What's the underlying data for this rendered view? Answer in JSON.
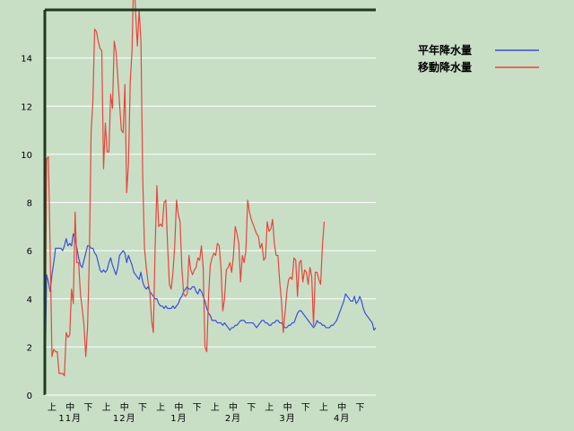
{
  "chart_data": {
    "type": "line",
    "title": "",
    "xlabel": "",
    "ylabel": "",
    "ylim": [
      0,
      16
    ],
    "y_ticks": [
      0,
      2,
      4,
      6,
      8,
      10,
      12,
      14
    ],
    "grid": true,
    "legend_position": "top-right",
    "x_ticks": [
      "上",
      "中",
      "下",
      "上",
      "中",
      "下",
      "上",
      "中",
      "下",
      "上",
      "中",
      "下",
      "上",
      "中",
      "下",
      "上",
      "中",
      "下"
    ],
    "months": [
      "11月",
      "12月",
      "1月",
      "2月",
      "3月",
      "4月"
    ],
    "colors": {
      "background": "#c8dfc6",
      "grid": "#ffffff",
      "axis": "#1f3a1f"
    },
    "series": [
      {
        "name": "平年降水量",
        "color": "#3b4fd8",
        "values": [
          0,
          5,
          4.7,
          4.3,
          5,
          5.5,
          6.1,
          6.1,
          6.1,
          6.1,
          6,
          6.2,
          6.5,
          6.2,
          6.3,
          6.2,
          6.7,
          6.5,
          6.1,
          5.7,
          5.4,
          5.3,
          5.6,
          5.9,
          6.2,
          6.2,
          6.1,
          6.1,
          5.9,
          5.8,
          5.5,
          5.2,
          5.1,
          5.2,
          5.1,
          5.2,
          5.5,
          5.7,
          5.4,
          5.2,
          5,
          5.3,
          5.8,
          5.9,
          6,
          5.9,
          5.5,
          5.8,
          5.6,
          5.4,
          5.1,
          5,
          4.9,
          4.8,
          5.1,
          4.7,
          4.5,
          4.4,
          4.5,
          4.3,
          4.2,
          4.1,
          4,
          4,
          3.8,
          3.7,
          3.7,
          3.6,
          3.7,
          3.6,
          3.6,
          3.6,
          3.7,
          3.6,
          3.7,
          3.8,
          4,
          4.1,
          4.3,
          4.4,
          4.5,
          4.4,
          4.4,
          4.5,
          4.5,
          4.3,
          4.2,
          4.4,
          4.3,
          4.1,
          3.9,
          3.6,
          3.4,
          3.3,
          3.1,
          3.1,
          3.1,
          3,
          3,
          3,
          2.9,
          3,
          2.9,
          2.8,
          2.7,
          2.8,
          2.8,
          2.9,
          2.9,
          3,
          3.1,
          3.1,
          3.1,
          3,
          3,
          3,
          3,
          3,
          2.9,
          2.8,
          2.9,
          3,
          3.1,
          3.1,
          3,
          3,
          2.9,
          2.9,
          3,
          3,
          3.1,
          3.1,
          3,
          3,
          2.9,
          2.8,
          2.8,
          2.9,
          2.9,
          3,
          3,
          3.2,
          3.4,
          3.5,
          3.5,
          3.4,
          3.3,
          3.2,
          3.1,
          3,
          2.9,
          2.8,
          2.9,
          3.1,
          3,
          3,
          2.9,
          2.9,
          2.8,
          2.8,
          2.8,
          2.9,
          2.9,
          3,
          3.1,
          3.3,
          3.5,
          3.7,
          3.9,
          4.2,
          4.1,
          4,
          3.9,
          3.9,
          4.1,
          3.8,
          3.9,
          4.1,
          3.9,
          3.6,
          3.4,
          3.3,
          3.2,
          3.1,
          3,
          2.7,
          2.8
        ]
      },
      {
        "name": "移動降水量",
        "color": "#e8453c",
        "values": [
          0,
          9.8,
          9.9,
          6,
          1.6,
          1.9,
          1.8,
          1.8,
          0.9,
          0.9,
          0.9,
          0.8,
          2.6,
          2.4,
          2.5,
          4.4,
          3.8,
          7.6,
          5.5,
          5.5,
          4.2,
          3.6,
          2.9,
          1.6,
          2.8,
          5.7,
          10.9,
          12.2,
          15.2,
          15.1,
          14.7,
          14.4,
          14.3,
          9.4,
          11.3,
          10.1,
          10.1,
          12.5,
          11.9,
          14.7,
          14.3,
          13.2,
          12.1,
          11,
          10.9,
          12.9,
          8.4,
          9.6,
          13,
          14.3,
          17.7,
          15.9,
          14.5,
          16,
          14.7,
          9.1,
          6.1,
          5.3,
          4.7,
          4.3,
          3.1,
          2.6,
          6.2,
          8.7,
          7,
          7.1,
          7,
          8,
          8.1,
          6.2,
          4.6,
          4.4,
          5.1,
          6.2,
          8.1,
          7.5,
          7.2,
          5.3,
          4.2,
          4.1,
          4.2,
          5.8,
          5.2,
          5,
          5.2,
          5.3,
          5.7,
          5.6,
          6.2,
          5.3,
          2,
          1.8,
          4.1,
          5.4,
          5.7,
          5.9,
          5.8,
          6.3,
          6.2,
          5.3,
          3.5,
          4,
          5.2,
          5.3,
          5.5,
          5.1,
          5.8,
          7,
          6.7,
          6.3,
          4.7,
          5.8,
          5.5,
          6,
          8.1,
          7.6,
          7.3,
          7.1,
          6.9,
          6.7,
          6.6,
          6.1,
          6.3,
          5.6,
          5.7,
          7.2,
          6.8,
          6.9,
          7.3,
          6.3,
          5.8,
          5.8,
          4.7,
          3.9,
          2.6,
          3.4,
          4.3,
          4.8,
          4.9,
          4.8,
          5.7,
          5.6,
          4.1,
          5.5,
          5.6,
          4.7,
          5.2,
          5.1,
          4.6,
          5.3,
          4.9,
          2.9,
          5.1,
          5.1,
          4.8,
          4.6,
          6.2,
          7.2
        ]
      }
    ]
  }
}
